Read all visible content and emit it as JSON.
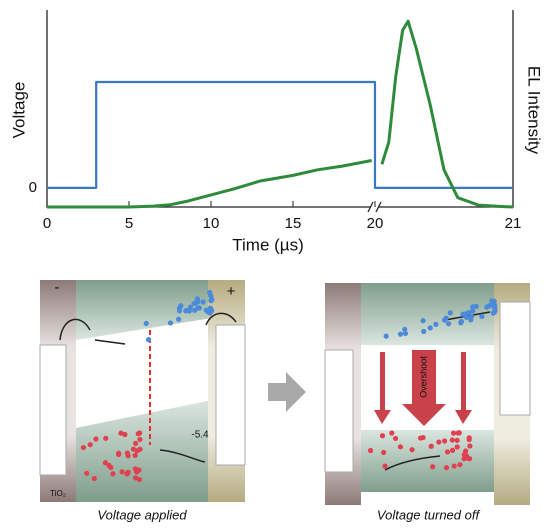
{
  "chart_data": {
    "type": "line",
    "x_label": "Time (µs)",
    "y_label": "Voltage",
    "y2_label": "EL Intensity",
    "xlim": [
      0,
      21
    ],
    "xticks": [
      0,
      5,
      10,
      15,
      20,
      21
    ],
    "x_break": 20,
    "ylim": [
      -0.18,
      1.68
    ],
    "yticks": [
      0
    ],
    "y2lim": [
      0,
      1.06
    ],
    "series": [
      {
        "name": "Voltage",
        "color": "#3a78c3",
        "x": [
          0,
          3,
          3,
          20,
          20,
          21
        ],
        "values": [
          0,
          0,
          1,
          1,
          0,
          0
        ]
      },
      {
        "name": "EL Intensity",
        "color": "#2e8b3a",
        "axis": "y2",
        "x": [
          0,
          5,
          6.5,
          7.5,
          8.5,
          10,
          11.5,
          13,
          15,
          16.5,
          18,
          19.8,
          20,
          20.05,
          20.1,
          20.15,
          20.2,
          20.24,
          20.3,
          20.4,
          20.5,
          20.6,
          20.75,
          20.9,
          21
        ],
        "values": [
          0,
          0,
          0.005,
          0.012,
          0.03,
          0.065,
          0.1,
          0.14,
          0.17,
          0.2,
          0.22,
          0.25,
          null,
          0.23,
          0.35,
          0.7,
          0.95,
          1,
          0.85,
          0.55,
          0.2,
          0.05,
          0.01,
          0.003,
          0
        ]
      }
    ]
  },
  "panels": [
    {
      "caption": "Voltage applied",
      "minus": "-",
      "plus": "+",
      "level": "-5.4",
      "layer": "TiO₂"
    },
    {
      "caption": "Voltage turned off",
      "arrow": "Overshoot"
    }
  ]
}
